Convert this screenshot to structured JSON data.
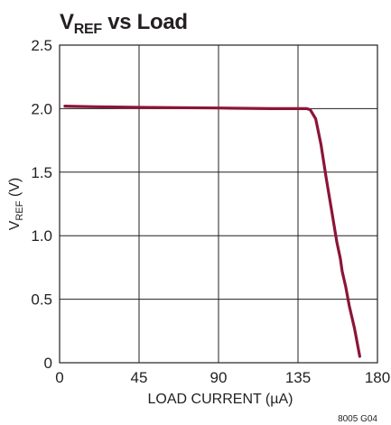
{
  "chart_data": {
    "type": "line",
    "title": {
      "main": "V",
      "sub": "REF",
      "rest": " vs Load"
    },
    "xlabel": "LOAD CURRENT (µA)",
    "ylabel": {
      "main": "V",
      "sub": "REF",
      "rest": " (V)"
    },
    "xlim": [
      0,
      180
    ],
    "ylim": [
      0,
      2.5
    ],
    "xticks": [
      {
        "value": 0,
        "label": "0"
      },
      {
        "value": 45,
        "label": "45"
      },
      {
        "value": 90,
        "label": "90"
      },
      {
        "value": 135,
        "label": "135"
      },
      {
        "value": 180,
        "label": "180"
      }
    ],
    "yticks": [
      {
        "value": 0,
        "label": "0"
      },
      {
        "value": 0.5,
        "label": "0.5"
      },
      {
        "value": 1.0,
        "label": "1.0"
      },
      {
        "value": 1.5,
        "label": "1.5"
      },
      {
        "value": 2.0,
        "label": "2.0"
      },
      {
        "value": 2.5,
        "label": "2.5"
      }
    ],
    "grid": true,
    "series": [
      {
        "color": "#8b1538",
        "x": [
          3,
          20,
          45,
          90,
          120,
          140,
          142,
          145,
          148,
          151,
          154,
          157,
          159,
          160,
          162,
          164,
          167,
          170
        ],
        "y": [
          2.02,
          2.015,
          2.01,
          2.005,
          2.0,
          2.0,
          1.99,
          1.92,
          1.72,
          1.45,
          1.2,
          0.95,
          0.82,
          0.72,
          0.6,
          0.45,
          0.27,
          0.05
        ]
      }
    ]
  },
  "figure_code": "8005 G04"
}
